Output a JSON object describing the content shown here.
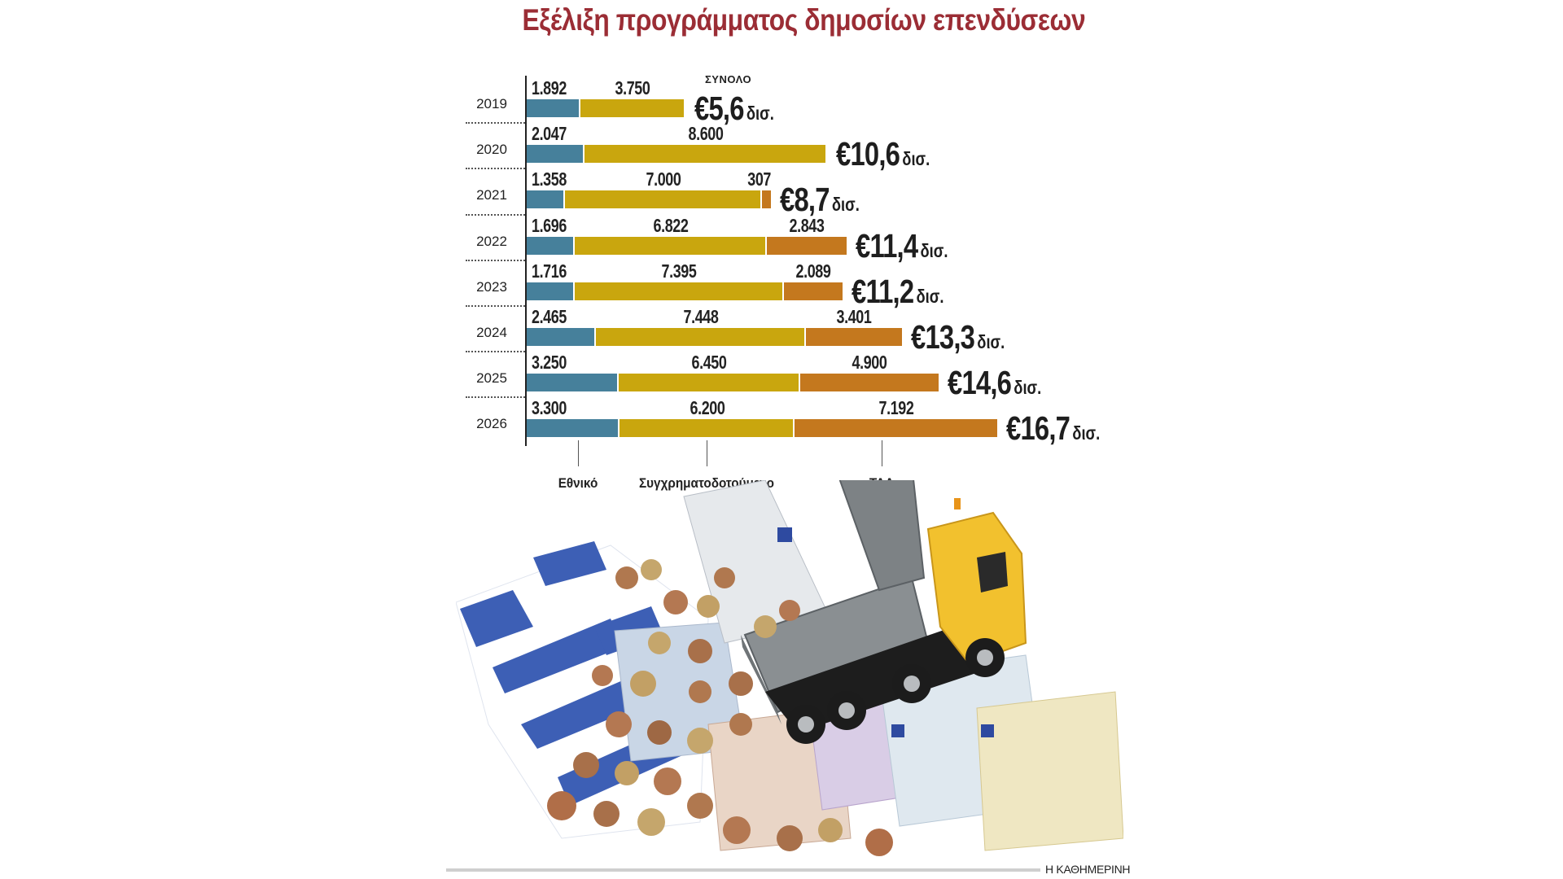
{
  "title": "Εξέλιξη προγράμματος δημοσίων επενδύσεων",
  "total_header": "ΣΥΝΟΛΟ",
  "unit_label": "δισ.",
  "colors": {
    "ethniko": "#46809b",
    "sygxrimatodotoumeno": "#c9a60e",
    "taa": "#c4781e",
    "title": "#9b2d35"
  },
  "legend": [
    {
      "label": "Εθνικό",
      "x": 710
    },
    {
      "label": "Συγχρηματοδοτούμενο",
      "x": 868
    },
    {
      "label": "ΤΑΑ",
      "x": 1083
    }
  ],
  "credit": "Η ΚΑΘΗΜΕΡΙΝΗ",
  "chart_data": {
    "type": "bar",
    "orientation": "horizontal",
    "stacked": true,
    "title": "Εξέλιξη προγράμματος δημοσίων επενδύσεων",
    "xlabel": "",
    "ylabel": "",
    "units": "εκατ. ευρώ (συνολα σε δισ. ευρώ)",
    "categories": [
      "2019",
      "2020",
      "2021",
      "2022",
      "2023",
      "2024",
      "2025",
      "2026"
    ],
    "series": [
      {
        "name": "Εθνικό",
        "values": [
          1892,
          2047,
          1358,
          1696,
          1716,
          2465,
          3250,
          3300
        ],
        "labels": [
          "1.892",
          "2.047",
          "1.358",
          "1.696",
          "1.716",
          "2.465",
          "3.250",
          "3.300"
        ]
      },
      {
        "name": "Συγχρηματοδοτούμενο",
        "values": [
          3750,
          8600,
          7000,
          6822,
          7395,
          7448,
          6450,
          6200
        ],
        "labels": [
          "3.750",
          "8.600",
          "7.000",
          "6.822",
          "7.395",
          "7.448",
          "6.450",
          "6.200"
        ]
      },
      {
        "name": "ΤΑΑ",
        "values": [
          0,
          0,
          307,
          2843,
          2089,
          3401,
          4900,
          7192
        ],
        "labels": [
          "",
          "",
          "307",
          "2.843",
          "2.089",
          "3.401",
          "4.900",
          "7.192"
        ]
      }
    ],
    "totals": [
      "€5,6",
      "€10,6",
      "€8,7",
      "€11,4",
      "€11,2",
      "€13,3",
      "€14,6",
      "€16,7"
    ],
    "totals_unit": "δισ.",
    "legend_position": "bottom",
    "grid": false
  }
}
